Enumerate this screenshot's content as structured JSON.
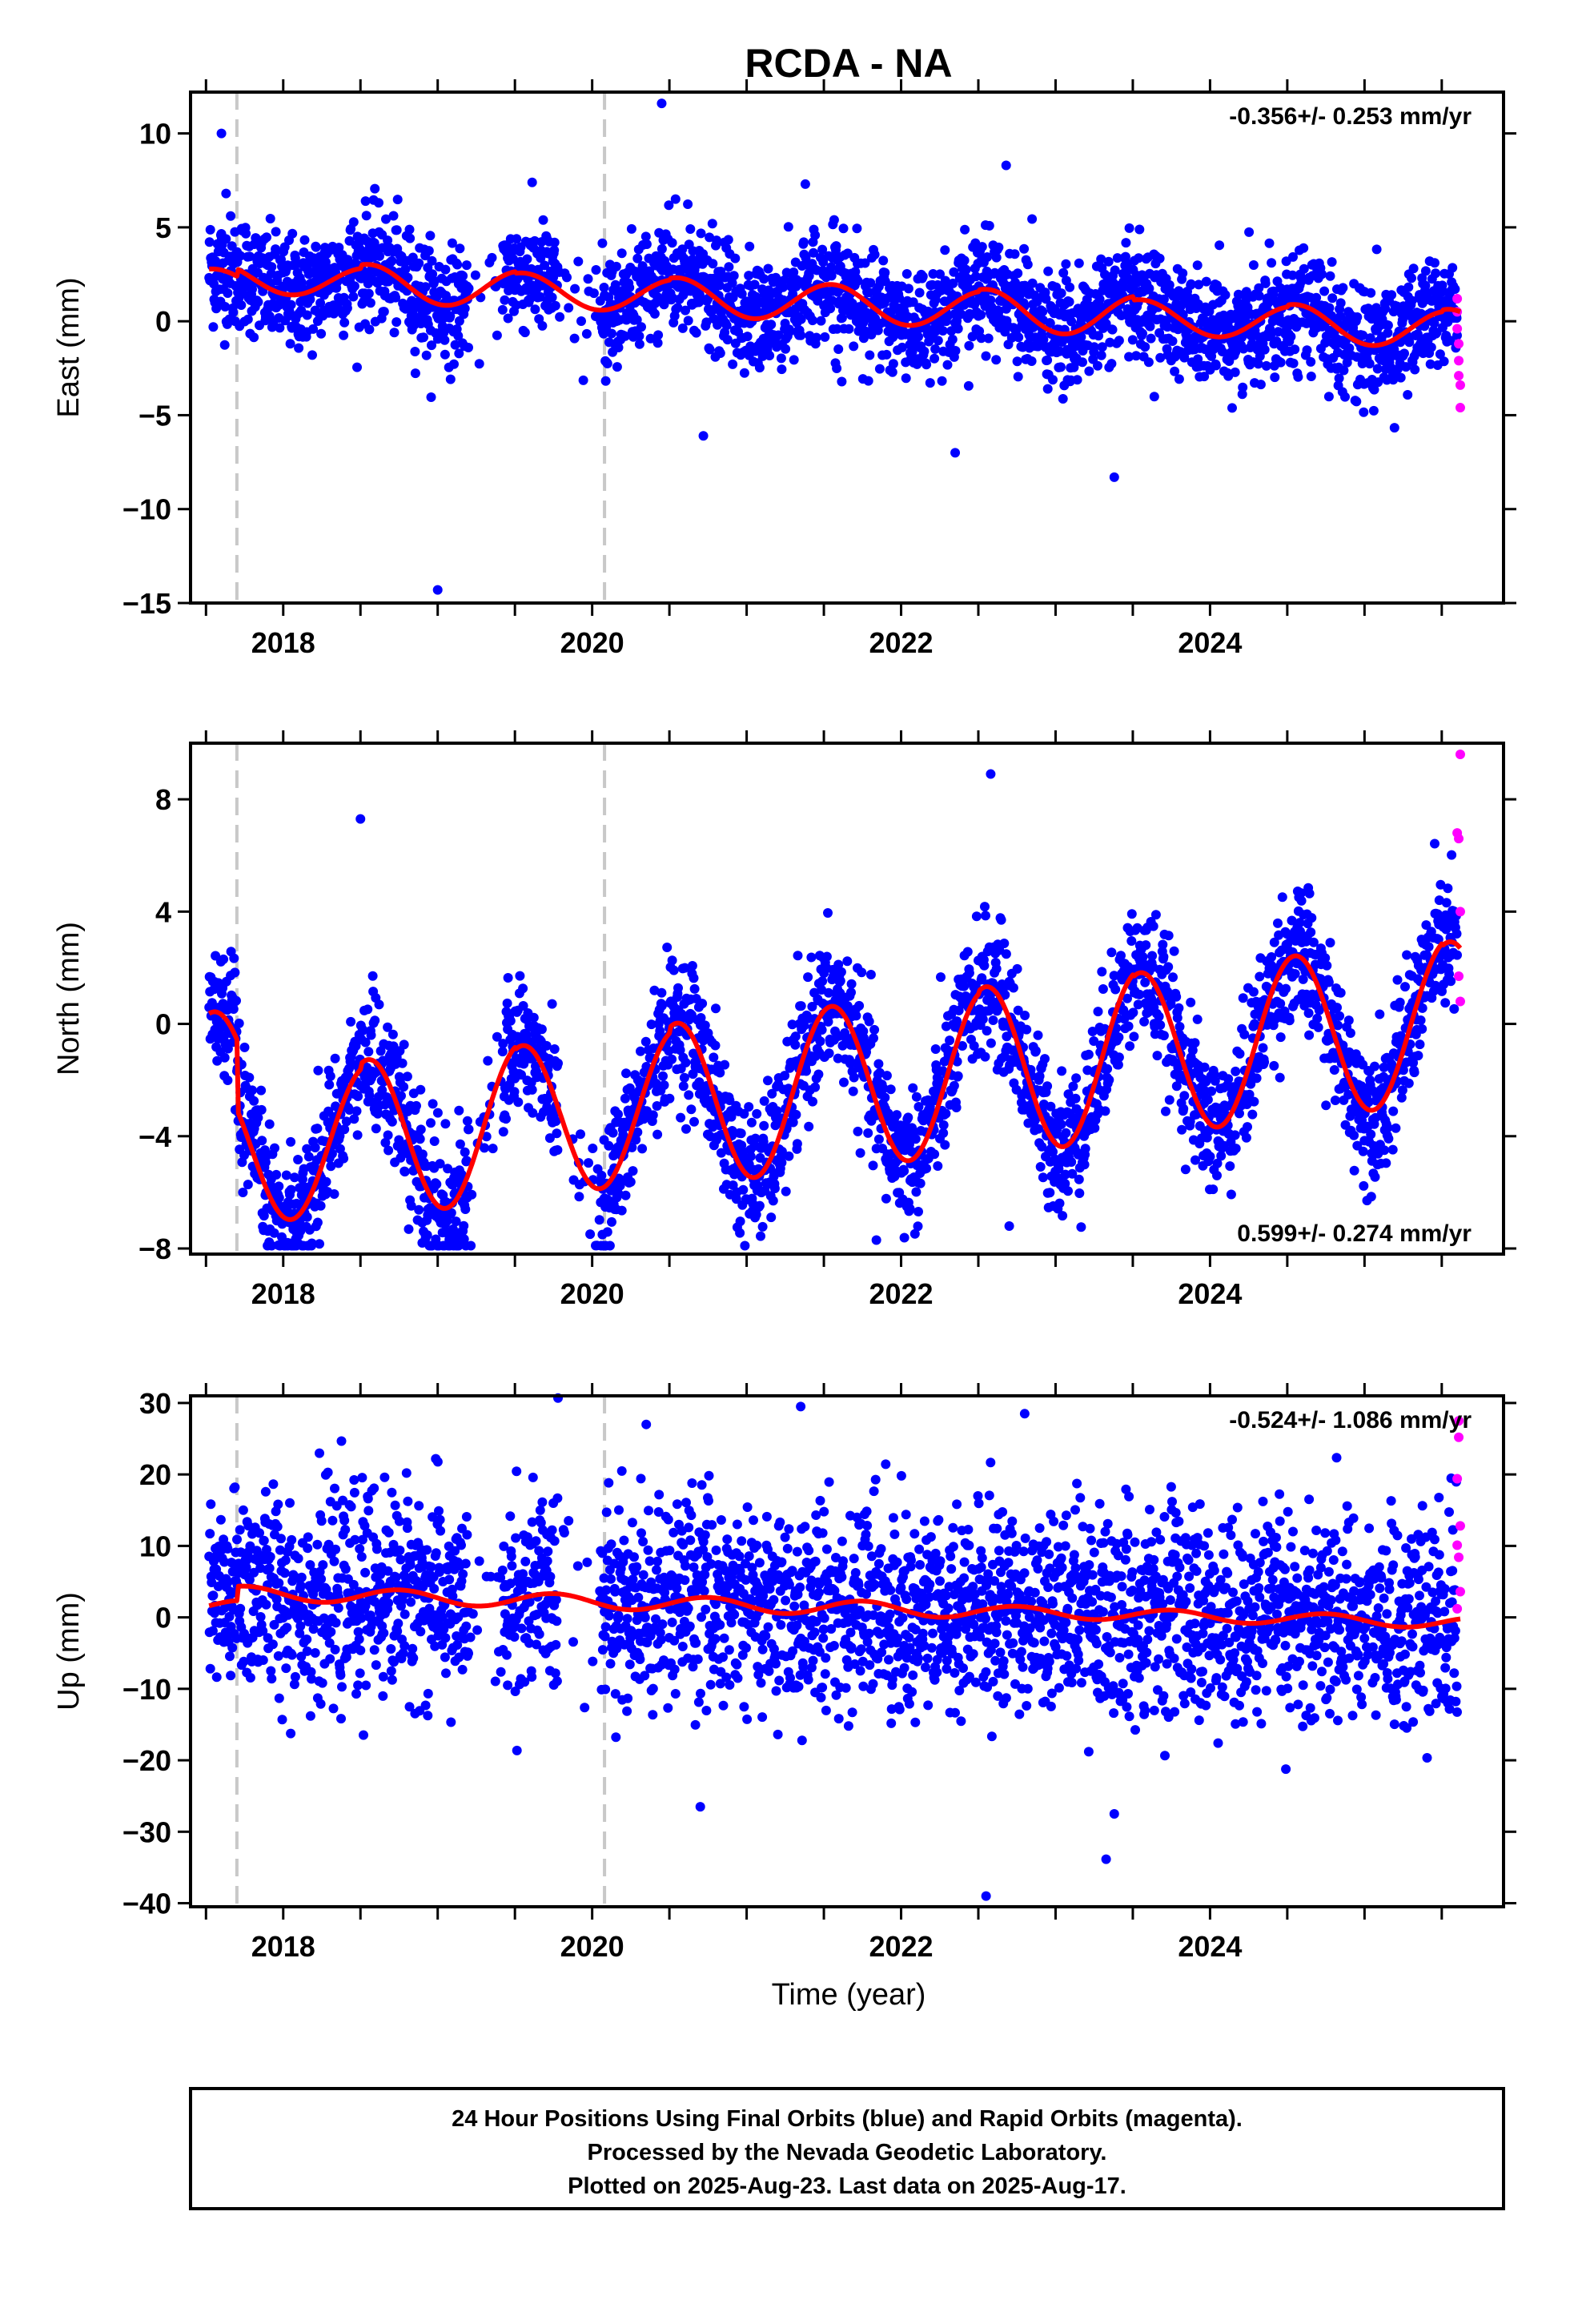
{
  "title": "RCDA - NA",
  "xlabel": "Time (year)",
  "footer": {
    "line1": "24 Hour Positions Using Final Orbits (blue) and Rapid Orbits (magenta).",
    "line2": "Processed by the Nevada Geodetic Laboratory.",
    "line3": "Plotted on 2025-Aug-23. Last data on 2025-Aug-17."
  },
  "colors": {
    "final_orbits": "#0000ff",
    "rapid_orbits": "#ff00ff",
    "model_fit": "#ff0000",
    "event_lines": "#c8c8c8"
  },
  "chart_data": [
    {
      "type": "scatter",
      "panel": "east",
      "ylabel": "East (mm)",
      "ylim": [
        -15,
        12.2
      ],
      "yticks": [
        -15,
        -10,
        -5,
        0,
        5,
        10
      ],
      "xlim": [
        2017.4,
        2025.9
      ],
      "xticks": [
        2018,
        2020,
        2022,
        2024
      ],
      "rate_label": "-0.356+/- 0.253 mm/yr",
      "rate_position": "top-right",
      "trend_mm_per_yr": -0.356,
      "fit_offset": 2.0,
      "seasonal_amplitude": [
        0.8,
        1.0,
        0.9,
        1.0,
        1.0,
        1.1,
        0.9,
        1.0,
        1.1
      ],
      "seasonal_peak_phase": 0.55,
      "noise_sd": 1.5,
      "offsets": [
        {
          "t": 2017.7,
          "dy": 0.4
        }
      ],
      "event_lines": [
        2017.7,
        2020.08
      ],
      "rapid_points": [
        {
          "t": 2025.6,
          "y": 1.2
        },
        {
          "t": 2025.6,
          "y": 0.5
        },
        {
          "t": 2025.6,
          "y": -0.4
        },
        {
          "t": 2025.61,
          "y": -1.2
        },
        {
          "t": 2025.61,
          "y": -2.1
        },
        {
          "t": 2025.61,
          "y": -2.9
        },
        {
          "t": 2025.62,
          "y": -3.4
        },
        {
          "t": 2025.62,
          "y": -4.6
        }
      ],
      "outliers": [
        {
          "t": 2017.6,
          "y": 10.0
        },
        {
          "t": 2017.63,
          "y": 6.8
        },
        {
          "t": 2019.0,
          "y": -14.3
        },
        {
          "t": 2020.45,
          "y": 11.6
        },
        {
          "t": 2022.68,
          "y": 8.3
        },
        {
          "t": 2023.38,
          "y": -8.3
        },
        {
          "t": 2022.35,
          "y": -7.0
        },
        {
          "t": 2020.72,
          "y": -6.1
        },
        {
          "t": 2021.38,
          "y": 7.3
        }
      ]
    },
    {
      "type": "scatter",
      "panel": "north",
      "ylabel": "North (mm)",
      "ylim": [
        -8.2,
        10.0
      ],
      "yticks": [
        -8,
        -4,
        0,
        4,
        8
      ],
      "xlim": [
        2017.4,
        2025.9
      ],
      "xticks": [
        2018,
        2020,
        2022,
        2024
      ],
      "rate_label": "0.599+/- 0.274 mm/yr",
      "rate_position": "bottom-right",
      "trend_mm_per_yr": 0.599,
      "fit_offset": -2.2,
      "seasonal_amplitude": [
        2.6,
        2.8,
        2.7,
        2.9,
        2.9,
        3.0,
        2.9,
        2.9,
        2.8
      ],
      "seasonal_peak_phase": 0.55,
      "noise_sd": 1.2,
      "offsets": [
        {
          "t": 2017.7,
          "dy": -2.5
        }
      ],
      "event_lines": [
        2017.7,
        2020.08
      ],
      "rapid_points": [
        {
          "t": 2025.62,
          "y": 9.6
        },
        {
          "t": 2025.6,
          "y": 6.8
        },
        {
          "t": 2025.61,
          "y": 6.6
        },
        {
          "t": 2025.62,
          "y": 4.0
        },
        {
          "t": 2025.61,
          "y": 1.7
        },
        {
          "t": 2025.62,
          "y": 0.8
        }
      ],
      "outliers": [
        {
          "t": 2018.5,
          "y": 7.3
        },
        {
          "t": 2021.84,
          "y": -7.7
        },
        {
          "t": 2022.7,
          "y": -7.2
        },
        {
          "t": 2018.9,
          "y": -7.8
        },
        {
          "t": 2022.58,
          "y": 8.9
        }
      ]
    },
    {
      "type": "scatter",
      "panel": "up",
      "ylabel": "Up (mm)",
      "ylim": [
        -40.5,
        31
      ],
      "yticks": [
        -40,
        -30,
        -20,
        -10,
        0,
        10,
        20,
        30
      ],
      "xlim": [
        2017.4,
        2025.9
      ],
      "xticks": [
        2018,
        2020,
        2022,
        2024
      ],
      "rate_label": "-0.524+/- 1.086 mm/yr",
      "rate_position": "top-right",
      "trend_mm_per_yr": -0.524,
      "fit_offset": 1.5,
      "seasonal_amplitude": [
        1.0,
        1.0,
        1.0,
        1.0,
        1.0,
        0.8,
        0.8,
        0.8,
        0.8
      ],
      "seasonal_peak_phase": 0.75,
      "noise_sd": 7.0,
      "offsets": [
        {
          "t": 2017.7,
          "dy": 2.0
        }
      ],
      "event_lines": [
        2017.7,
        2020.08
      ],
      "rapid_points": [
        {
          "t": 2025.61,
          "y": 27.5
        },
        {
          "t": 2025.61,
          "y": 25.2
        },
        {
          "t": 2025.6,
          "y": 19.4
        },
        {
          "t": 2025.62,
          "y": 12.8
        },
        {
          "t": 2025.6,
          "y": 10.1
        },
        {
          "t": 2025.61,
          "y": 8.4
        },
        {
          "t": 2025.62,
          "y": 3.6
        },
        {
          "t": 2025.6,
          "y": 1.2
        }
      ],
      "outliers": [
        {
          "t": 2022.55,
          "y": -39.0
        },
        {
          "t": 2021.35,
          "y": 29.5
        },
        {
          "t": 2022.8,
          "y": 28.5
        },
        {
          "t": 2023.38,
          "y": -27.5
        },
        {
          "t": 2020.7,
          "y": -26.5
        },
        {
          "t": 2020.35,
          "y": 27.0
        }
      ]
    }
  ]
}
